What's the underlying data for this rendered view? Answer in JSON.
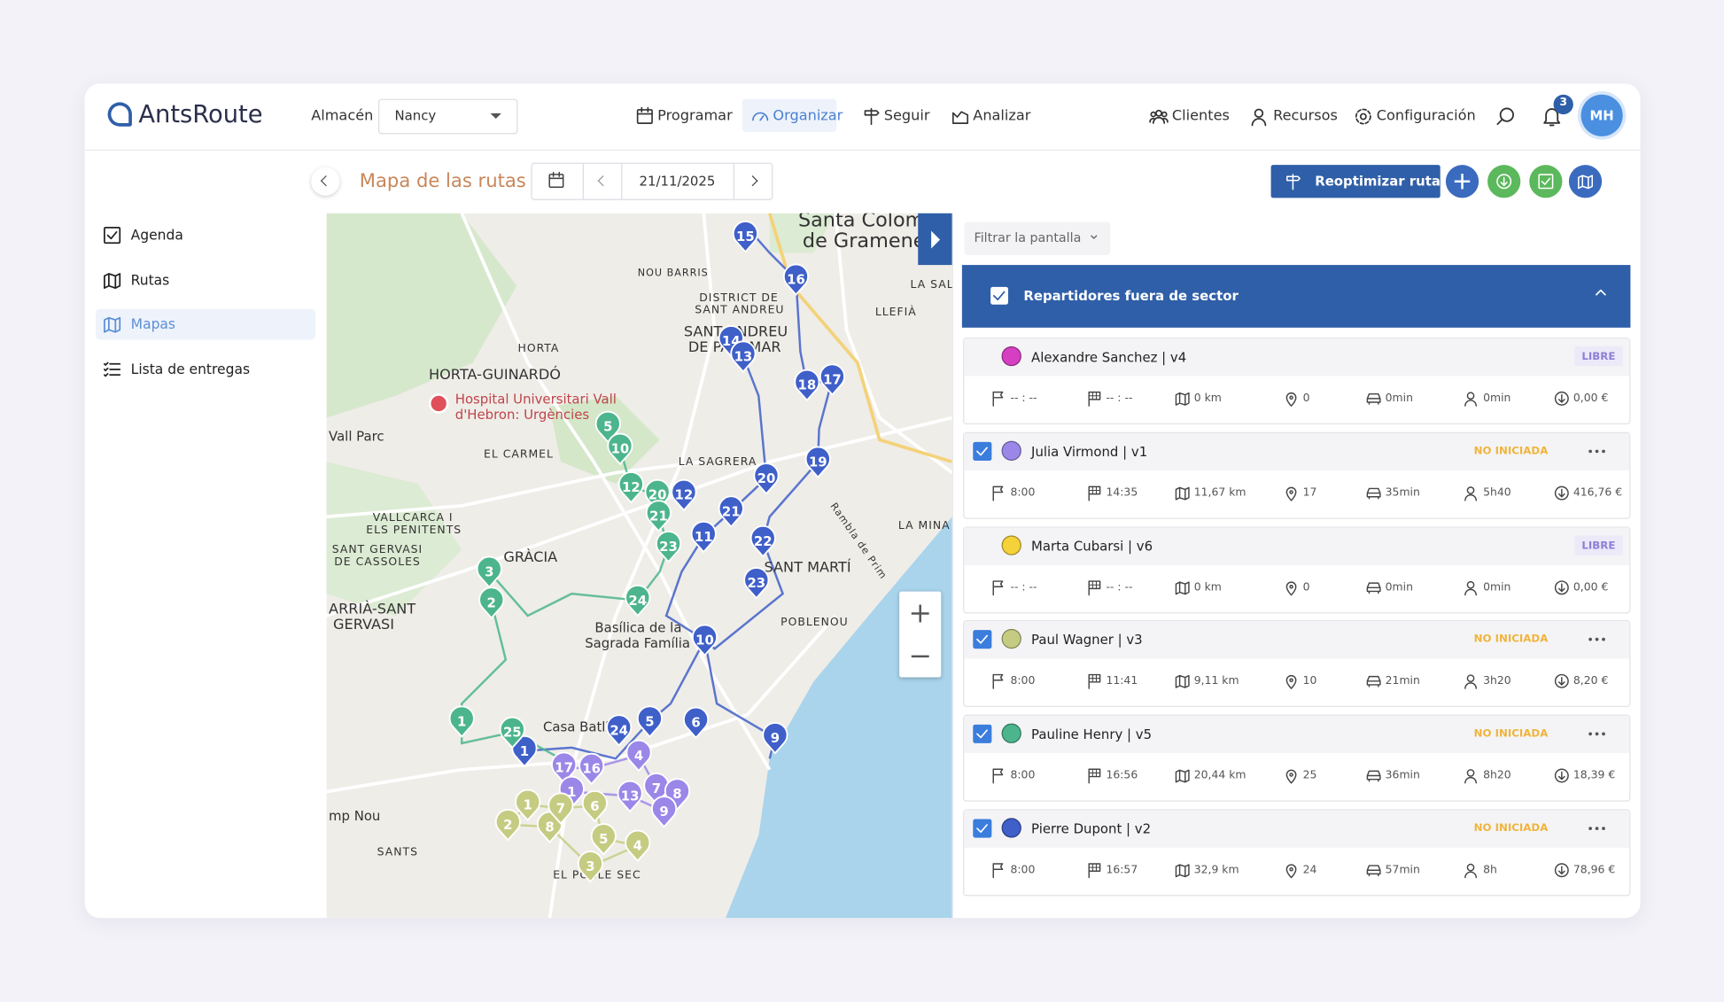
{
  "header": {
    "logo": "AntsRoute",
    "warehouse_label": "Almacén",
    "warehouse": "Nancy",
    "nav": [
      {
        "label": "Programar",
        "active": false
      },
      {
        "label": "Organizar",
        "active": true
      },
      {
        "label": "Seguir",
        "active": false
      },
      {
        "label": "Analizar",
        "active": false
      }
    ],
    "right_nav": [
      "Clientes",
      "Recursos",
      "Configuración"
    ],
    "notifications": "3",
    "user": "MH"
  },
  "sidebar": [
    {
      "label": "Agenda",
      "active": false
    },
    {
      "label": "Rutas",
      "active": false
    },
    {
      "label": "Mapas",
      "active": true
    },
    {
      "label": "Lista de entregas",
      "active": false
    }
  ],
  "toolbar": {
    "title": "Mapa de las rutas",
    "date": "21/11/2025",
    "reoptimize": "Reoptimizar rutas"
  },
  "map": {
    "places": [
      "Santa Colom",
      "de Gramene",
      "NOU BARRIS",
      "DISTRICT DE",
      "SANT ANDREU",
      "SANT ANDREU",
      "DE PALOMAR",
      "HORTA",
      "HORTA-GUINARDÓ",
      "Hospital Universitari Vall",
      "d'Hebron: Urgències",
      "EL CARMEL",
      "LA SAGRERA",
      "VALLCARCA I",
      "ELS PENITENTS",
      "SANT GERVASI",
      "DE CASSOLES",
      "GRÀCIA",
      "SANT MARTÍ",
      "POBLENOU",
      "LA MINA",
      "LLEFIÀ",
      "LA SAL",
      "Basílica de la",
      "Sagrada Família",
      "Casa Batlló",
      "ARRIÀ-SANT",
      "GERVASI",
      "Vall Parc",
      "mp Nou",
      "SANTS",
      "EL POBLE SEC",
      "Rambla de Prim"
    ],
    "routes": [
      {
        "color": "#3f5fc9",
        "stops": [
          "15",
          "16",
          "14",
          "13",
          "18",
          "17",
          "19",
          "20",
          "21",
          "11",
          "22",
          "23",
          "10",
          "9",
          "5",
          "6",
          "1",
          "24",
          "12"
        ]
      },
      {
        "color": "#4cb58d",
        "stops": [
          "5",
          "10",
          "12",
          "20",
          "21",
          "23",
          "24",
          "3",
          "2",
          "1",
          "25"
        ]
      },
      {
        "color": "#9b87e8",
        "stops": [
          "17",
          "16",
          "4",
          "13",
          "7",
          "8",
          "9",
          "1"
        ]
      },
      {
        "color": "#c5cc82",
        "stops": [
          "2",
          "8",
          "1",
          "6",
          "5",
          "4",
          "3",
          "7"
        ]
      }
    ]
  },
  "panel": {
    "filter": "Filtrar la pantalla",
    "group": "Repartidores fuera de sector",
    "drivers": [
      {
        "name": "Alexandre Sanchez | v4",
        "status": "LIBRE",
        "checked": false,
        "color": "#d63fc1",
        "start": "-- : --",
        "end": "-- : --",
        "distance": "0 km",
        "stops": "0",
        "drive": "0min",
        "work": "0min",
        "cost": "0,00 €"
      },
      {
        "name": "Julia Virmond | v1",
        "status": "NO INICIADA",
        "checked": true,
        "color": "#9b87e8",
        "start": "8:00",
        "end": "14:35",
        "distance": "11,67 km",
        "stops": "17",
        "drive": "35min",
        "work": "5h40",
        "cost": "416,76 €"
      },
      {
        "name": "Marta Cubarsi | v6",
        "status": "LIBRE",
        "checked": false,
        "color": "#f5d13a",
        "start": "-- : --",
        "end": "-- : --",
        "distance": "0 km",
        "stops": "0",
        "drive": "0min",
        "work": "0min",
        "cost": "0,00 €"
      },
      {
        "name": "Paul Wagner | v3",
        "status": "NO INICIADA",
        "checked": true,
        "color": "#c5cc82",
        "start": "8:00",
        "end": "11:41",
        "distance": "9,11 km",
        "stops": "10",
        "drive": "21min",
        "work": "3h20",
        "cost": "8,20 €"
      },
      {
        "name": "Pauline Henry | v5",
        "status": "NO INICIADA",
        "checked": true,
        "color": "#4cb58d",
        "start": "8:00",
        "end": "16:56",
        "distance": "20,44 km",
        "stops": "25",
        "drive": "36min",
        "work": "8h20",
        "cost": "18,39 €"
      },
      {
        "name": "Pierre Dupont | v2",
        "status": "NO INICIADA",
        "checked": true,
        "color": "#3f5fc9",
        "start": "8:00",
        "end": "16:57",
        "distance": "32,9 km",
        "stops": "24",
        "drive": "57min",
        "work": "8h",
        "cost": "78,96 €"
      }
    ]
  }
}
